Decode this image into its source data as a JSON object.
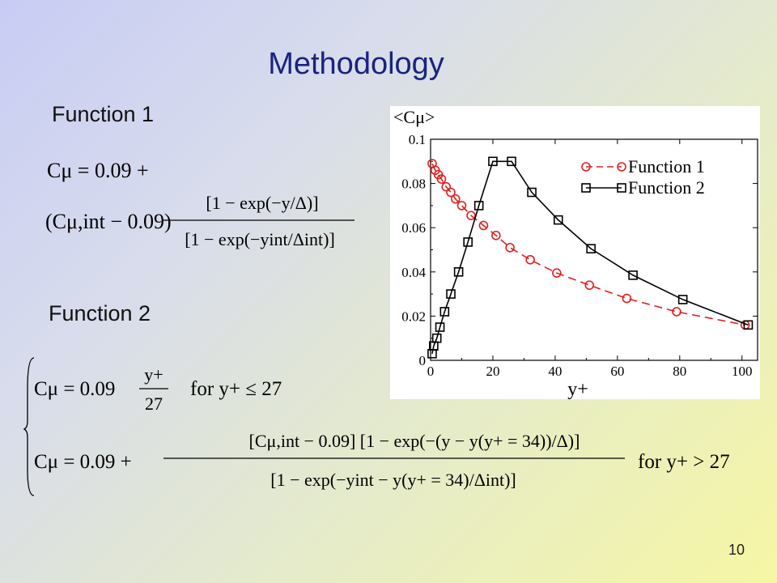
{
  "slide": {
    "title": "Methodology",
    "function1_heading": "Function 1",
    "function2_heading": "Function 2",
    "page_number": "10"
  },
  "formulas": {
    "f1_line1": "Cμ = 0.09 +",
    "f1_coef": "(Cμ,int − 0.09)",
    "f1_num": "[1 − exp(−y/Δ)]",
    "f1_den": "[1 − exp(−yint/Δint)]",
    "f2_case1_lhs": "Cμ = 0.09",
    "f2_case1_num": "y+",
    "f2_case1_den": "27",
    "f2_case1_cond": "for y+ ≤ 27",
    "f2_case2_lhs": "Cμ = 0.09 +",
    "f2_case2_num": "[Cμ,int − 0.09] [1 − exp(−(y − y(y+ = 34))/Δ)]",
    "f2_case2_den": "[1 − exp(−yint − y(y+ = 34)/Δint)]",
    "f2_case2_cond": "for y+ > 27"
  },
  "chart_data": {
    "type": "line",
    "ylabel": "<Cμ>",
    "xlabel": "y+",
    "xlim": [
      0,
      105
    ],
    "ylim": [
      0,
      0.1
    ],
    "xticks": [
      "0",
      "20",
      "40",
      "60",
      "80",
      "100"
    ],
    "yticks": [
      "0",
      "0.02",
      "0.04",
      "0.06",
      "0.08",
      "0.1"
    ],
    "legend_position": "top-right",
    "series": [
      {
        "name": "Function 1",
        "color": "#e02020",
        "marker": "circle",
        "line": "dashed",
        "x": [
          0.5,
          1.5,
          2.5,
          3.5,
          5,
          6.5,
          8,
          10,
          13,
          17,
          21,
          25.5,
          32,
          40.5,
          51,
          63,
          79,
          101
        ],
        "y": [
          0.089,
          0.086,
          0.084,
          0.082,
          0.0785,
          0.076,
          0.073,
          0.07,
          0.0655,
          0.061,
          0.0565,
          0.051,
          0.0455,
          0.0395,
          0.034,
          0.028,
          0.022,
          0.016
        ]
      },
      {
        "name": "Function 2",
        "color": "#000000",
        "marker": "square",
        "line": "solid",
        "x": [
          0.5,
          1,
          2,
          3,
          4.5,
          6.5,
          9,
          12,
          15.5,
          20,
          26,
          32.5,
          41,
          51.5,
          65,
          81,
          102
        ],
        "y": [
          0.003,
          0.0065,
          0.01,
          0.015,
          0.022,
          0.03,
          0.04,
          0.0535,
          0.07,
          0.09,
          0.09,
          0.076,
          0.0635,
          0.0505,
          0.0385,
          0.0275,
          0.016
        ]
      }
    ]
  }
}
